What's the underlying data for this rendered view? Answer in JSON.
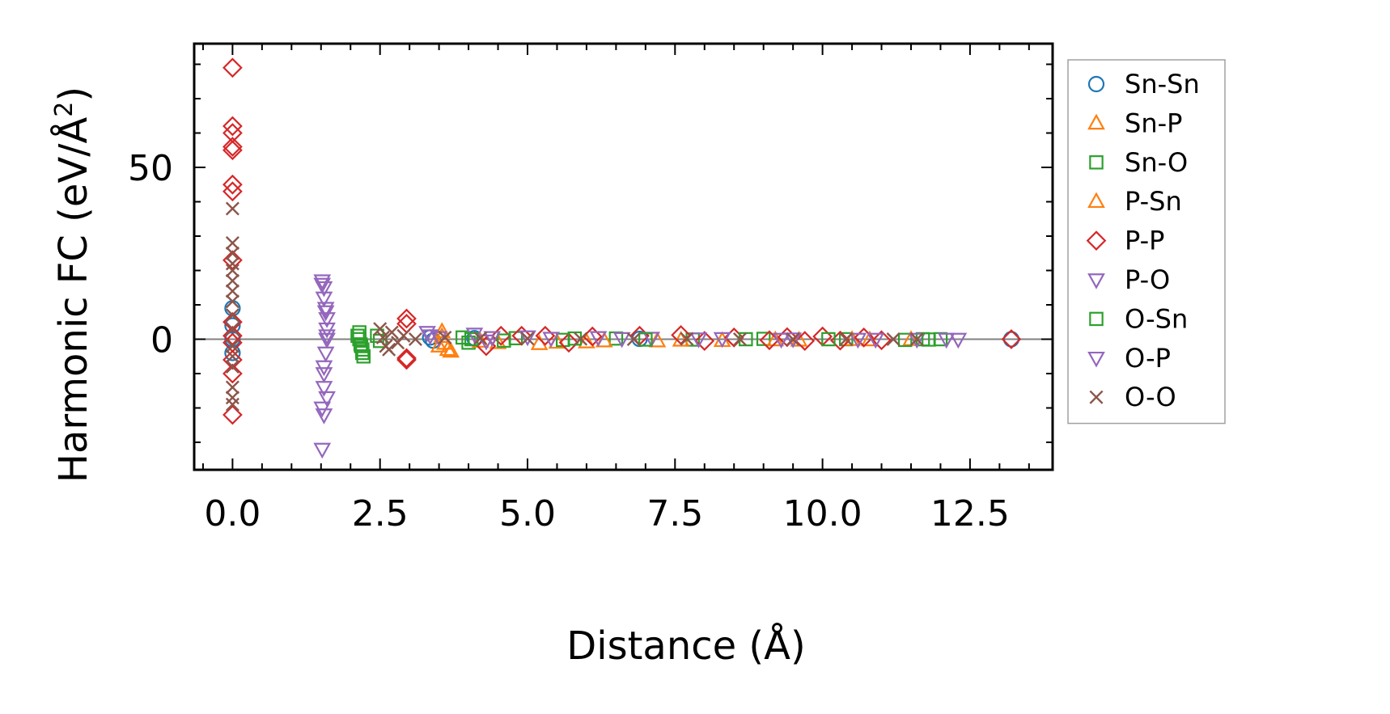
{
  "chart_data": {
    "type": "scatter",
    "xlabel": "Distance (Å)",
    "ylabel_main": "Harmonic FC (eV/Å",
    "ylabel_sup": "2",
    "ylabel_close": ")",
    "xlim": [
      -0.65,
      13.9
    ],
    "ylim": [
      -38,
      86
    ],
    "xticks": [
      0.0,
      2.5,
      5.0,
      7.5,
      10.0,
      12.5
    ],
    "xtick_labels": [
      "0.0",
      "2.5",
      "5.0",
      "7.5",
      "10.0",
      "12.5"
    ],
    "yticks": [
      0,
      50
    ],
    "ytick_labels": [
      "0",
      "50"
    ],
    "zero_line": true,
    "grid": false,
    "legend_position": "right-outside",
    "series": [
      {
        "name": "Sn-Sn",
        "marker": "circle",
        "color": "#1f77b4",
        "points": [
          [
            0.0,
            9
          ],
          [
            0.0,
            4
          ],
          [
            0.0,
            0
          ],
          [
            0.0,
            -4
          ],
          [
            3.35,
            0.5
          ],
          [
            3.4,
            -0.4
          ],
          [
            4.1,
            0.3
          ],
          [
            6.9,
            0.1
          ],
          [
            13.2,
            0.0
          ]
        ]
      },
      {
        "name": "Sn-P",
        "marker": "triangle-up",
        "color": "#ff7f0e",
        "points": [
          [
            3.55,
            2.2
          ],
          [
            3.6,
            -1.2
          ],
          [
            3.65,
            -3.0
          ],
          [
            3.7,
            -3.5
          ],
          [
            4.5,
            -1.0
          ],
          [
            5.2,
            -1.3
          ],
          [
            6.0,
            -0.8
          ],
          [
            7.2,
            -0.5
          ],
          [
            8.3,
            -0.4
          ],
          [
            9.6,
            -0.3
          ],
          [
            10.8,
            -0.2
          ],
          [
            11.5,
            -0.1
          ]
        ]
      },
      {
        "name": "Sn-O",
        "marker": "square",
        "color": "#2ca02c",
        "points": [
          [
            2.15,
            2.0
          ],
          [
            2.15,
            0.0
          ],
          [
            2.17,
            -1.5
          ],
          [
            2.2,
            -3.0
          ],
          [
            2.22,
            -5.0
          ],
          [
            2.45,
            1.0
          ],
          [
            2.5,
            -0.5
          ],
          [
            3.9,
            0.5
          ],
          [
            4.0,
            -1.0
          ],
          [
            4.8,
            0.3
          ],
          [
            5.6,
            -0.2
          ],
          [
            6.5,
            0.2
          ],
          [
            7.8,
            -0.1
          ],
          [
            9.0,
            0.1
          ],
          [
            10.4,
            0.0
          ],
          [
            11.4,
            -0.2
          ],
          [
            11.7,
            0.0
          ],
          [
            12.0,
            0.0
          ]
        ]
      },
      {
        "name": "P-Sn",
        "marker": "triangle-up",
        "color": "#ff7f0e",
        "points": [
          [
            3.5,
            -2.0
          ],
          [
            3.55,
            0.8
          ],
          [
            4.2,
            -0.6
          ],
          [
            5.5,
            -0.9
          ],
          [
            6.3,
            -0.5
          ],
          [
            7.6,
            -0.3
          ],
          [
            9.2,
            -0.2
          ],
          [
            10.5,
            -0.1
          ]
        ]
      },
      {
        "name": "P-P",
        "marker": "diamond",
        "color": "#d62728",
        "points": [
          [
            0.0,
            79
          ],
          [
            0.0,
            62
          ],
          [
            0.0,
            60
          ],
          [
            0.0,
            56
          ],
          [
            0.0,
            55
          ],
          [
            0.0,
            45
          ],
          [
            0.0,
            43
          ],
          [
            0.0,
            23
          ],
          [
            0.0,
            5
          ],
          [
            0.0,
            1
          ],
          [
            0.0,
            -1
          ],
          [
            0.0,
            -6
          ],
          [
            0.0,
            -10
          ],
          [
            0.0,
            -22
          ],
          [
            2.95,
            6.0
          ],
          [
            2.95,
            4.5
          ],
          [
            2.95,
            -5.5
          ],
          [
            2.95,
            -6.0
          ],
          [
            4.3,
            -2.0
          ],
          [
            4.55,
            1.0
          ],
          [
            4.9,
            1.0
          ],
          [
            5.3,
            1.0
          ],
          [
            5.7,
            -1.0
          ],
          [
            6.1,
            0.8
          ],
          [
            6.9,
            1.0
          ],
          [
            7.6,
            1.2
          ],
          [
            8.0,
            -0.5
          ],
          [
            8.5,
            0.5
          ],
          [
            9.1,
            -0.3
          ],
          [
            9.4,
            0.6
          ],
          [
            9.7,
            -0.5
          ],
          [
            10.0,
            0.8
          ],
          [
            10.3,
            -0.4
          ],
          [
            10.7,
            0.5
          ],
          [
            11.0,
            -0.3
          ],
          [
            13.2,
            0.0
          ]
        ]
      },
      {
        "name": "P-O",
        "marker": "triangle-down",
        "color": "#9467bd",
        "points": [
          [
            1.52,
            17
          ],
          [
            1.55,
            15
          ],
          [
            1.55,
            12
          ],
          [
            1.58,
            9
          ],
          [
            1.6,
            6
          ],
          [
            1.6,
            3
          ],
          [
            1.6,
            0
          ],
          [
            1.58,
            -4
          ],
          [
            1.55,
            -8
          ],
          [
            1.55,
            -14
          ],
          [
            1.52,
            -20
          ],
          [
            1.55,
            -22
          ],
          [
            3.3,
            2.0
          ],
          [
            3.5,
            0.5
          ],
          [
            4.1,
            1.5
          ],
          [
            4.3,
            -0.5
          ],
          [
            5.0,
            0.7
          ],
          [
            6.2,
            0.5
          ],
          [
            7.1,
            0.3
          ],
          [
            8.3,
            0.2
          ],
          [
            9.5,
            0.1
          ],
          [
            10.6,
            0.0
          ],
          [
            11.6,
            0.0
          ],
          [
            12.3,
            0.0
          ]
        ]
      },
      {
        "name": "O-Sn",
        "marker": "square",
        "color": "#2ca02c",
        "points": [
          [
            2.12,
            1.0
          ],
          [
            2.18,
            -2.0
          ],
          [
            2.2,
            -4.0
          ],
          [
            4.05,
            0.0
          ],
          [
            4.6,
            -0.4
          ],
          [
            5.8,
            0.2
          ],
          [
            7.0,
            -0.1
          ],
          [
            8.7,
            0.0
          ],
          [
            10.1,
            0.0
          ],
          [
            11.8,
            -0.1
          ]
        ]
      },
      {
        "name": "O-P",
        "marker": "triangle-down",
        "color": "#9467bd",
        "points": [
          [
            1.52,
            16
          ],
          [
            1.58,
            8
          ],
          [
            1.6,
            1
          ],
          [
            1.55,
            -10
          ],
          [
            1.52,
            -32
          ],
          [
            1.6,
            -17
          ],
          [
            3.35,
            1.0
          ],
          [
            4.4,
            0.5
          ],
          [
            5.4,
            0.3
          ],
          [
            6.6,
            0.2
          ],
          [
            7.9,
            0.1
          ],
          [
            9.3,
            0.0
          ],
          [
            10.9,
            0.0
          ],
          [
            12.1,
            0.0
          ]
        ]
      },
      {
        "name": "O-O",
        "marker": "x",
        "color": "#8c564b",
        "points": [
          [
            0.0,
            38
          ],
          [
            0.0,
            28
          ],
          [
            0.0,
            25
          ],
          [
            0.0,
            22
          ],
          [
            0.0,
            20
          ],
          [
            0.0,
            17
          ],
          [
            0.0,
            14
          ],
          [
            0.0,
            11
          ],
          [
            0.0,
            7
          ],
          [
            0.0,
            3
          ],
          [
            0.0,
            -2
          ],
          [
            0.0,
            -5
          ],
          [
            0.0,
            -8
          ],
          [
            0.0,
            -14
          ],
          [
            0.0,
            -17
          ],
          [
            0.0,
            -19
          ],
          [
            2.5,
            3.0
          ],
          [
            2.55,
            0.5
          ],
          [
            2.6,
            -2.0
          ],
          [
            2.65,
            -3.0
          ],
          [
            2.7,
            2.0
          ],
          [
            2.8,
            -1.0
          ],
          [
            2.9,
            1.0
          ],
          [
            3.1,
            0.0
          ],
          [
            3.6,
            0.5
          ],
          [
            4.2,
            0.3
          ],
          [
            5.0,
            0.2
          ],
          [
            5.9,
            0.1
          ],
          [
            6.8,
            0.0
          ],
          [
            7.7,
            0.1
          ],
          [
            8.6,
            0.0
          ],
          [
            9.5,
            0.0
          ],
          [
            10.4,
            0.0
          ],
          [
            11.2,
            0.0
          ],
          [
            11.6,
            0.0
          ]
        ]
      }
    ]
  }
}
